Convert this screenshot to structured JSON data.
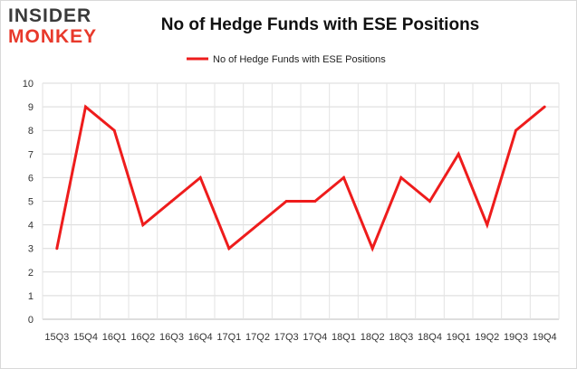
{
  "logo": {
    "line1": "INSIDER",
    "line2": "MONKEY"
  },
  "chart_data": {
    "type": "line",
    "title": "No of Hedge Funds with ESE Positions",
    "categories": [
      "15Q3",
      "15Q4",
      "16Q1",
      "16Q2",
      "16Q3",
      "16Q4",
      "17Q1",
      "17Q2",
      "17Q3",
      "17Q4",
      "18Q1",
      "18Q2",
      "18Q3",
      "18Q4",
      "19Q1",
      "19Q2",
      "19Q3",
      "19Q4"
    ],
    "series": [
      {
        "name": "No of Hedge Funds with ESE Positions",
        "values": [
          3,
          9,
          8,
          4,
          5,
          6,
          3,
          4,
          5,
          5,
          6,
          3,
          6,
          5,
          7,
          4,
          8,
          9
        ],
        "color": "#ee1c1c"
      }
    ],
    "ylim": [
      0,
      10
    ],
    "yticks": [
      0,
      1,
      2,
      3,
      4,
      5,
      6,
      7,
      8,
      9,
      10
    ],
    "grid": true,
    "legend": "top-center",
    "xlabel": "",
    "ylabel": ""
  }
}
